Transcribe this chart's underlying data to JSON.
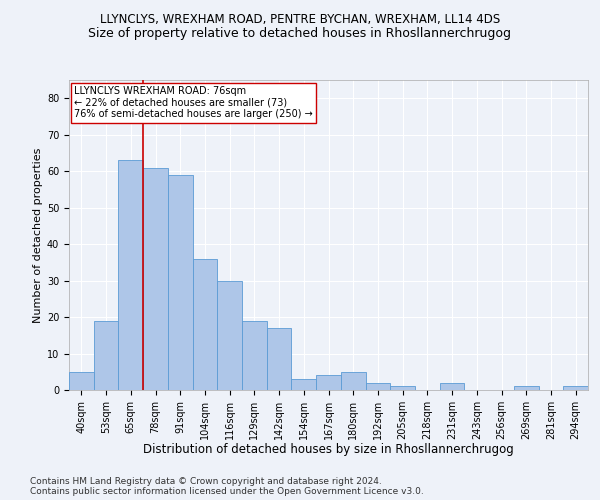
{
  "title1": "LLYNCLYS, WREXHAM ROAD, PENTRE BYCHAN, WREXHAM, LL14 4DS",
  "title2": "Size of property relative to detached houses in Rhosllannerchrugog",
  "xlabel": "Distribution of detached houses by size in Rhosllannerchrugog",
  "ylabel": "Number of detached properties",
  "categories": [
    "40sqm",
    "53sqm",
    "65sqm",
    "78sqm",
    "91sqm",
    "104sqm",
    "116sqm",
    "129sqm",
    "142sqm",
    "154sqm",
    "167sqm",
    "180sqm",
    "192sqm",
    "205sqm",
    "218sqm",
    "231sqm",
    "243sqm",
    "256sqm",
    "269sqm",
    "281sqm",
    "294sqm"
  ],
  "values": [
    5,
    19,
    63,
    61,
    59,
    36,
    30,
    19,
    17,
    3,
    4,
    5,
    2,
    1,
    0,
    2,
    0,
    0,
    1,
    0,
    1
  ],
  "bar_color": "#aec6e8",
  "bar_edge_color": "#5b9bd5",
  "vline_color": "#cc0000",
  "annotation_title": "LLYNCLYS WREXHAM ROAD: 76sqm",
  "annotation_line1": "← 22% of detached houses are smaller (73)",
  "annotation_line2": "76% of semi-detached houses are larger (250) →",
  "annotation_box_color": "#ffffff",
  "annotation_box_edge": "#cc0000",
  "ylim": [
    0,
    85
  ],
  "yticks": [
    0,
    10,
    20,
    30,
    40,
    50,
    60,
    70,
    80
  ],
  "footer1": "Contains HM Land Registry data © Crown copyright and database right 2024.",
  "footer2": "Contains public sector information licensed under the Open Government Licence v3.0.",
  "background_color": "#eef2f9",
  "grid_color": "#ffffff",
  "title1_fontsize": 8.5,
  "title2_fontsize": 9,
  "xlabel_fontsize": 8.5,
  "ylabel_fontsize": 8,
  "tick_fontsize": 7,
  "annotation_fontsize": 7,
  "footer_fontsize": 6.5
}
